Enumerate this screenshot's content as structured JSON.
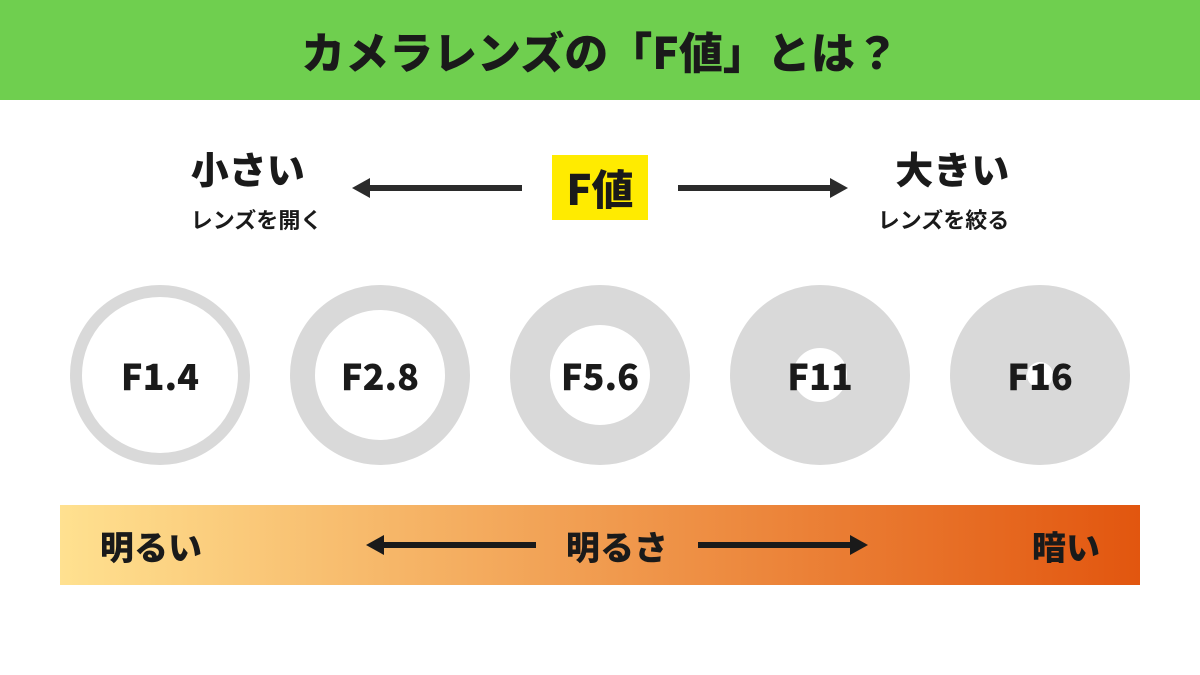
{
  "title": {
    "text": "カメラレンズの「F値」とは？",
    "background": "#6fcf4f",
    "color": "#1a1a1a",
    "fontsize": 44,
    "height": 100
  },
  "scale": {
    "left_big": "小さい",
    "left_sub": "レンズを開く",
    "right_big": "大きい",
    "right_sub": "レンズを絞る",
    "center_label": "F値",
    "center_bg": "#ffeb00",
    "center_color": "#1a1a1a",
    "center_fontsize": 42,
    "big_fontsize": 38,
    "sub_fontsize": 22,
    "arrow_color": "#2b2b2b",
    "arrow_len": 170,
    "arrow_stroke": 6
  },
  "apertures": {
    "ring_color": "#d9d9d9",
    "outer_diameter": 180,
    "label_fontsize": 36,
    "label_color": "#1a1a1a",
    "items": [
      {
        "label": "F1.4",
        "inner_diameter": 156
      },
      {
        "label": "F2.8",
        "inner_diameter": 130
      },
      {
        "label": "F5.6",
        "inner_diameter": 100
      },
      {
        "label": "F11",
        "inner_diameter": 54
      },
      {
        "label": "F16",
        "inner_diameter": 26
      }
    ]
  },
  "brightness": {
    "left": "明るい",
    "center": "明るさ",
    "right": "暗い",
    "fontsize": 34,
    "color": "#1a1a1a",
    "gradient_from": "#ffe190",
    "gradient_to": "#e2560f",
    "arrow_color": "#1a1a1a",
    "arrow_len": 170,
    "arrow_stroke": 6,
    "height": 80
  }
}
